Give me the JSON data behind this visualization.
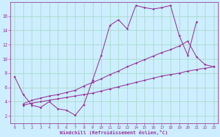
{
  "xlabel": "Windchill (Refroidissement éolien,°C)",
  "background_color": "#cceeff",
  "grid_color": "#aaddcc",
  "line_color": "#993399",
  "xlim": [
    -0.5,
    23.5
  ],
  "ylim": [
    1.0,
    18.0
  ],
  "xticks": [
    0,
    1,
    2,
    3,
    4,
    5,
    6,
    7,
    8,
    9,
    10,
    11,
    12,
    13,
    14,
    15,
    16,
    17,
    18,
    19,
    20,
    21,
    22,
    23
  ],
  "yticks": [
    2,
    4,
    6,
    8,
    10,
    12,
    14,
    16
  ],
  "series1_x": [
    0,
    1,
    2,
    3,
    4,
    5,
    6,
    7,
    8,
    9,
    10,
    11,
    12,
    13,
    14,
    15,
    16,
    17,
    18,
    19,
    20,
    21
  ],
  "series1_y": [
    7.5,
    5.0,
    3.5,
    3.2,
    4.0,
    3.0,
    2.8,
    2.1,
    3.6,
    7.0,
    10.5,
    14.7,
    15.5,
    14.2,
    17.5,
    17.2,
    17.0,
    17.2,
    17.5,
    13.3,
    10.5,
    15.2
  ],
  "series2_x": [
    1,
    2,
    3,
    4,
    5,
    6,
    7,
    8,
    9,
    10,
    11,
    12,
    13,
    14,
    15,
    16,
    17,
    18,
    19,
    20,
    21,
    22,
    23
  ],
  "series2_y": [
    3.7,
    4.2,
    4.5,
    4.8,
    5.0,
    5.3,
    5.6,
    6.2,
    6.7,
    7.2,
    7.8,
    8.3,
    8.9,
    9.4,
    9.9,
    10.4,
    10.9,
    11.3,
    11.8,
    12.5,
    10.3,
    9.2,
    8.9
  ],
  "series3_x": [
    1,
    2,
    3,
    4,
    5,
    6,
    7,
    8,
    9,
    10,
    11,
    12,
    13,
    14,
    15,
    16,
    17,
    18,
    19,
    20,
    21,
    22,
    23
  ],
  "series3_y": [
    3.5,
    3.8,
    4.0,
    4.2,
    4.4,
    4.6,
    4.8,
    5.0,
    5.2,
    5.5,
    5.8,
    6.1,
    6.4,
    6.7,
    7.0,
    7.3,
    7.6,
    7.8,
    8.0,
    8.3,
    8.5,
    8.7,
    8.9
  ]
}
